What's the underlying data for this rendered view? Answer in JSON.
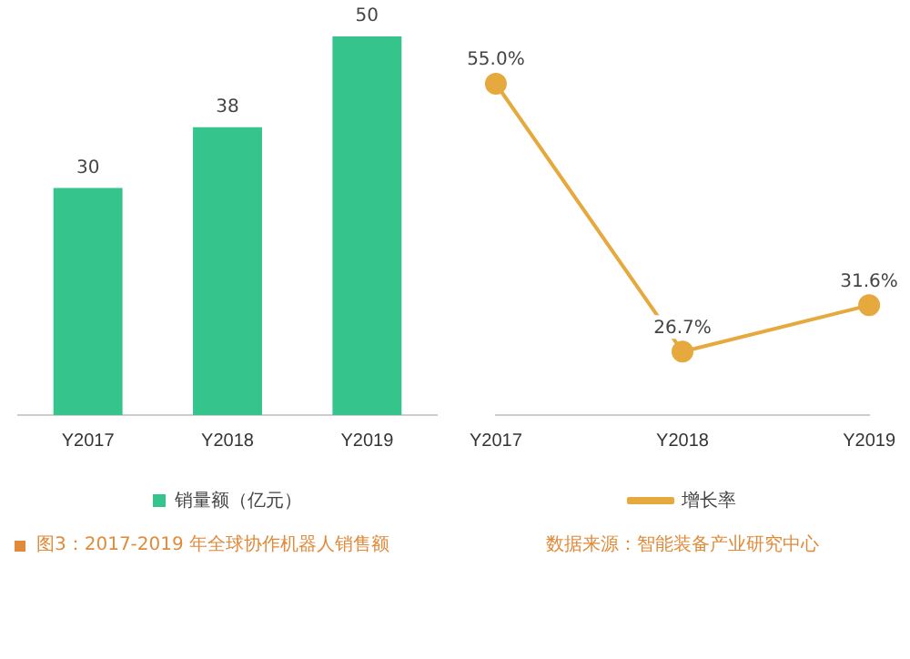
{
  "chart_data": [
    {
      "type": "bar",
      "categories": [
        "Y2017",
        "Y2018",
        "Y2019"
      ],
      "series": [
        {
          "name": "销量额（亿元）",
          "color": "#35c48c",
          "values": [
            30,
            38,
            50
          ]
        }
      ],
      "data_labels": true,
      "legend": "bottom",
      "grid": false,
      "annotations": [
        "图3：2017-2019 年全球协作机器人销售额"
      ]
    },
    {
      "type": "line",
      "categories": [
        "Y2017",
        "Y2018",
        "Y2019"
      ],
      "series": [
        {
          "name": "增长率",
          "color": "#e5a93d",
          "values": [
            55.0,
            26.7,
            31.6
          ],
          "value_labels": [
            "55.0%",
            "26.7%",
            "31.6%"
          ]
        }
      ],
      "marker": "circle",
      "legend": "bottom",
      "grid": false,
      "annotations": [
        "数据来源：智能装备产业研究中心"
      ]
    }
  ]
}
